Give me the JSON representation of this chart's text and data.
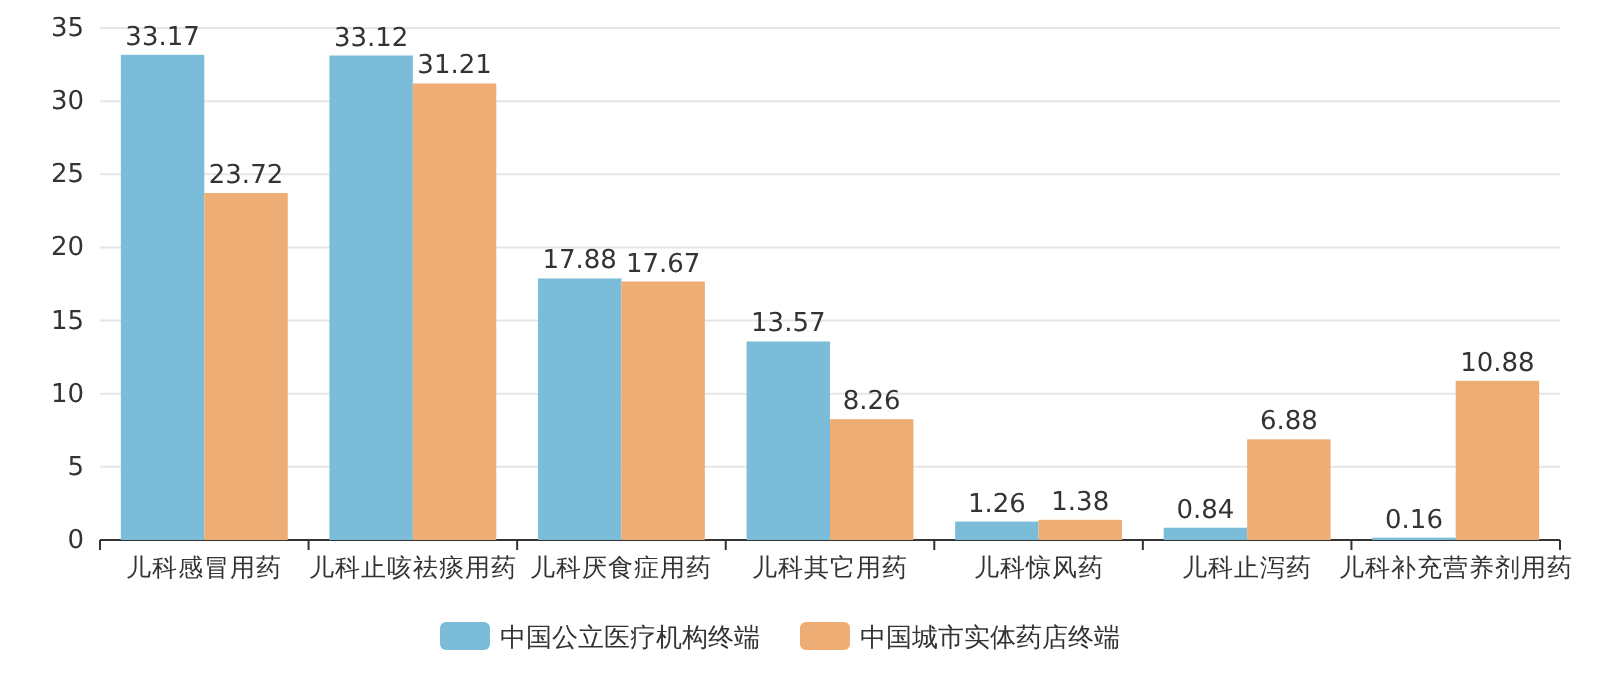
{
  "chart_data": {
    "type": "bar",
    "categories": [
      "儿科感冒用药",
      "儿科止咳祛痰用药",
      "儿科厌食症用药",
      "儿科其它用药",
      "儿科惊风药",
      "儿科止泻药",
      "儿科补充营养剂用药"
    ],
    "series": [
      {
        "name": "中国公立医疗机构终端",
        "color": "#7bbdd9",
        "values": [
          33.17,
          33.12,
          17.88,
          13.57,
          1.26,
          0.84,
          0.16
        ]
      },
      {
        "name": "中国城市实体药店终端",
        "color": "#eead74",
        "values": [
          23.72,
          31.21,
          17.67,
          8.26,
          1.38,
          6.88,
          10.88
        ]
      }
    ],
    "ylim": [
      0,
      35
    ],
    "yticks": [
      0,
      5,
      10,
      15,
      20,
      25,
      30,
      35
    ],
    "grid": "y",
    "legend": "bottom",
    "data_labels": true
  }
}
